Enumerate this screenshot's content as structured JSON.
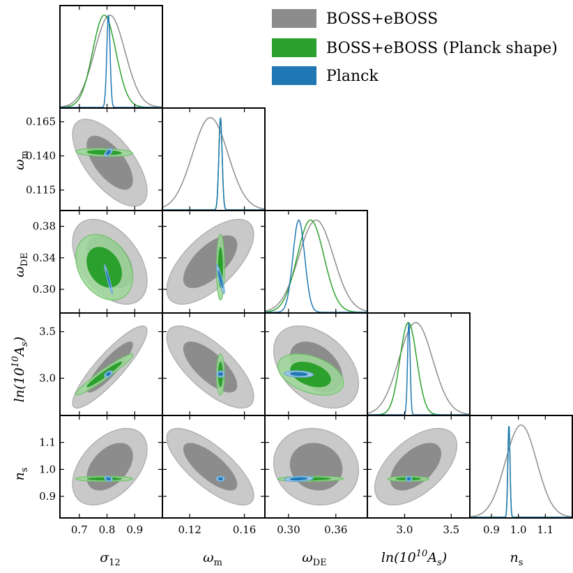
{
  "chart_data": {
    "type": "corner-plot",
    "title": "",
    "parameters": [
      {
        "key": "sigma12",
        "symbol": "σ",
        "sub": "12",
        "range": [
          0.63,
          1.0
        ],
        "ticks": [
          0.7,
          0.8,
          0.9
        ],
        "tick_labels": [
          "0.7",
          "0.8",
          "0.9"
        ]
      },
      {
        "key": "omega_m",
        "symbol": "ω",
        "sub": "m",
        "range": [
          0.1,
          0.175
        ],
        "ticks": [
          0.115,
          0.14,
          0.165
        ],
        "tick_labels": [
          "0.115",
          "0.140",
          "0.165"
        ],
        "x_ticks": [
          0.12,
          0.16
        ],
        "x_tick_labels": [
          "0.12",
          "0.16"
        ]
      },
      {
        "key": "omega_de",
        "symbol": "ω",
        "sub": "DE",
        "range": [
          0.27,
          0.4
        ],
        "ticks": [
          0.3,
          0.34,
          0.38
        ],
        "tick_labels": [
          "0.30",
          "0.34",
          "0.38"
        ],
        "x_ticks": [
          0.3,
          0.36
        ],
        "x_tick_labels": [
          "0.30",
          "0.36"
        ]
      },
      {
        "key": "lnAs",
        "label_pre": "ln(10",
        "label_sup": "10",
        "label_mid": "A",
        "label_sub": "s",
        "label_post": ")",
        "range": [
          2.6,
          3.7
        ],
        "ticks": [
          3.0,
          3.5
        ],
        "tick_labels": [
          "3.0",
          "3.5"
        ],
        "y_ticks": [
          3.0,
          3.5
        ],
        "y_tick_labels": [
          "3.0",
          "3.5"
        ]
      },
      {
        "key": "ns",
        "symbol": "n",
        "sub": "s",
        "range": [
          0.82,
          1.2
        ],
        "ticks": [
          0.9,
          1.0,
          1.1
        ],
        "tick_labels": [
          "0.9",
          "1.0",
          "1.1"
        ],
        "y_ticks": [
          0.9,
          1.0,
          1.1
        ],
        "y_tick_labels": [
          "0.9",
          "1.0",
          "1.1"
        ]
      }
    ],
    "x_axis_labels": [
      "σ12",
      "ωm",
      "ωDE",
      "ln(10^10 As)",
      "ns"
    ],
    "y_axis_labels": [
      "ωm",
      "ωDE",
      "ln(10^10 As)",
      "ns"
    ],
    "legend": {
      "placement": "top-right",
      "entries": [
        {
          "label": "BOSS+eBOSS",
          "color": "#8c8c8c"
        },
        {
          "label": "BOSS+eBOSS (Planck shape)",
          "color": "#2ca02c"
        },
        {
          "label": "Planck",
          "color": "#1f77b4"
        }
      ]
    },
    "series": [
      {
        "name": "BOSS+eBOSS",
        "color": "#8c8c8c",
        "means": {
          "sigma12": 0.81,
          "omega_m": 0.135,
          "omega_de": 0.335,
          "lnAs": 3.12,
          "ns": 1.01
        },
        "sigmas": {
          "sigma12": 0.055,
          "omega_m": 0.013,
          "omega_de": 0.022,
          "lnAs": 0.18,
          "ns": 0.058
        },
        "correlations": {
          "omega_m|sigma12": -0.65,
          "omega_de|sigma12": -0.45,
          "omega_de|omega_m": 0.65,
          "lnAs|sigma12": 0.88,
          "lnAs|omega_m": -0.72,
          "lnAs|omega_de": -0.4,
          "ns|sigma12": 0.45,
          "ns|omega_m": -0.75,
          "ns|omega_de": -0.1,
          "ns|lnAs": 0.55
        }
      },
      {
        "name": "BOSS+eBOSS (Planck shape)",
        "color": "#2ca02c",
        "means": {
          "sigma12": 0.79,
          "omega_m": 0.1425,
          "omega_de": 0.328,
          "lnAs": 3.04,
          "ns": 0.965
        },
        "sigmas": {
          "sigma12": 0.042,
          "omega_m": 0.0012,
          "omega_de": 0.017,
          "lnAs": 0.09,
          "ns": 0.004
        },
        "correlations": {
          "omega_m|sigma12": -0.2,
          "omega_de|sigma12": -0.3,
          "omega_de|omega_m": 0.0,
          "lnAs|sigma12": 0.96,
          "lnAs|omega_m": 0.0,
          "lnAs|omega_de": -0.4,
          "ns|sigma12": 0.0,
          "ns|omega_m": 0.0,
          "ns|omega_de": 0.1,
          "ns|lnAs": 0.0
        }
      },
      {
        "name": "Planck",
        "color": "#1f77b4",
        "means": {
          "sigma12": 0.805,
          "omega_m": 0.1425,
          "omega_de": 0.313,
          "lnAs": 3.045,
          "ns": 0.965
        },
        "sigmas": {
          "sigma12": 0.006,
          "omega_m": 0.0012,
          "omega_de": 0.0075,
          "lnAs": 0.014,
          "ns": 0.004
        },
        "correlations": {
          "omega_m|sigma12": 0.6,
          "omega_de|sigma12": -0.95,
          "omega_de|omega_m": -0.9,
          "lnAs|sigma12": 0.5,
          "lnAs|omega_m": 0.0,
          "lnAs|omega_de": -0.2,
          "ns|sigma12": -0.3,
          "ns|omega_m": 0.0,
          "ns|omega_de": 0.25,
          "ns|lnAs": 0.0
        }
      }
    ]
  },
  "legend_text": {
    "entry1": "BOSS+eBOSS",
    "entry2": "BOSS+eBOSS (Planck shape)",
    "entry3": "Planck"
  },
  "axis_text": {
    "x0": "σ",
    "x0_sub": "12",
    "x1": "ω",
    "x1_sub": "m",
    "x2": "ω",
    "x2_sub": "DE",
    "x3_pre": "ln(10",
    "x3_sup": "10",
    "x3_mid": "A",
    "x3_sub": "s",
    "x3_post": ")",
    "x4": "n",
    "x4_sub": "s",
    "y1": "ω",
    "y1_sub": "m",
    "y2": "ω",
    "y2_sub": "DE",
    "y3_pre": "ln(10",
    "y3_sup": "10",
    "y3_mid": "A",
    "y3_sub": "s",
    "y3_post": ")",
    "y4": "n",
    "y4_sub": "s"
  }
}
